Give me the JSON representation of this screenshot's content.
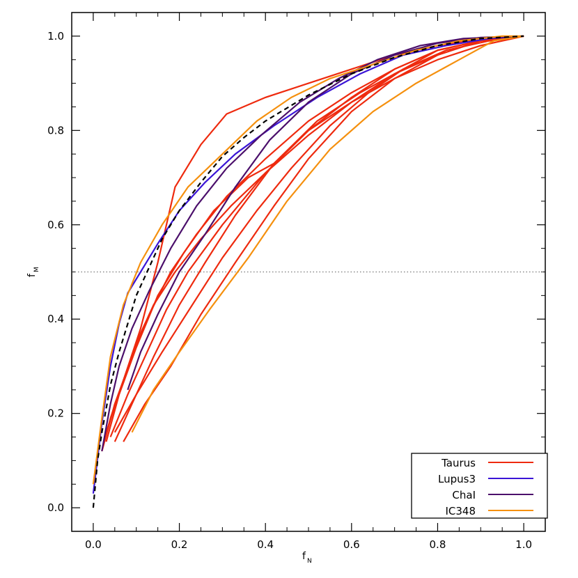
{
  "chart_data": {
    "type": "line",
    "title": "",
    "xlabel_main": "f",
    "xlabel_sub": "N",
    "ylabel_main": "f",
    "ylabel_sub": "M",
    "xlim": [
      -0.05,
      1.05
    ],
    "ylim": [
      -0.05,
      1.05
    ],
    "xticks": [
      "0.0",
      "0.2",
      "0.4",
      "0.6",
      "0.8",
      "1.0"
    ],
    "yticks": [
      "0.0",
      "0.2",
      "0.4",
      "0.6",
      "0.8",
      "1.0"
    ],
    "reference_line_y": 0.5,
    "grid": false,
    "legend_position": "bottom-right",
    "legend": [
      {
        "label": "Taurus",
        "color": "#ee2a0e"
      },
      {
        "label": "Lupus3",
        "color": "#3a14d6"
      },
      {
        "label": "ChaI",
        "color": "#4b0f6b"
      },
      {
        "label": "IC348",
        "color": "#f5900e"
      }
    ],
    "model_curve": {
      "style": "dashed",
      "color": "#000000",
      "x": [
        0.0,
        0.01,
        0.02,
        0.04,
        0.06,
        0.08,
        0.1,
        0.13,
        0.16,
        0.2,
        0.25,
        0.3,
        0.35,
        0.4,
        0.5,
        0.6,
        0.7,
        0.8,
        0.9,
        1.0
      ],
      "y": [
        0.0,
        0.1,
        0.16,
        0.26,
        0.33,
        0.39,
        0.45,
        0.51,
        0.57,
        0.63,
        0.69,
        0.745,
        0.785,
        0.82,
        0.875,
        0.92,
        0.955,
        0.98,
        0.995,
        1.0
      ]
    },
    "series": [
      {
        "group": "Taurus",
        "color": "#ee2a0e",
        "x": [
          0.03,
          0.07,
          0.11,
          0.15,
          0.19,
          0.25,
          0.31,
          0.4,
          0.5,
          0.6,
          0.7,
          0.8,
          0.9,
          1.0
        ],
        "y": [
          0.16,
          0.27,
          0.38,
          0.52,
          0.68,
          0.77,
          0.835,
          0.87,
          0.9,
          0.93,
          0.96,
          0.98,
          0.995,
          1.0
        ]
      },
      {
        "group": "Taurus",
        "color": "#ee2a0e",
        "x": [
          0.04,
          0.08,
          0.12,
          0.17,
          0.22,
          0.3,
          0.4,
          0.5,
          0.6,
          0.7,
          0.8,
          0.9,
          1.0
        ],
        "y": [
          0.15,
          0.24,
          0.32,
          0.42,
          0.5,
          0.6,
          0.71,
          0.8,
          0.86,
          0.91,
          0.95,
          0.98,
          1.0
        ]
      },
      {
        "group": "Taurus",
        "color": "#ee2a0e",
        "x": [
          0.05,
          0.09,
          0.14,
          0.2,
          0.26,
          0.33,
          0.42,
          0.52,
          0.62,
          0.72,
          0.82,
          0.92,
          1.0
        ],
        "y": [
          0.14,
          0.22,
          0.32,
          0.43,
          0.52,
          0.62,
          0.73,
          0.82,
          0.88,
          0.93,
          0.97,
          0.99,
          1.0
        ]
      },
      {
        "group": "Taurus",
        "color": "#ee2a0e",
        "x": [
          0.07,
          0.12,
          0.18,
          0.25,
          0.33,
          0.42,
          0.5,
          0.6,
          0.7,
          0.8,
          0.9,
          1.0
        ],
        "y": [
          0.14,
          0.22,
          0.3,
          0.41,
          0.52,
          0.64,
          0.74,
          0.84,
          0.91,
          0.96,
          0.99,
          1.0
        ]
      },
      {
        "group": "Taurus",
        "color": "#ee2a0e",
        "x": [
          0.02,
          0.05,
          0.09,
          0.13,
          0.18,
          0.24,
          0.31,
          0.4,
          0.5,
          0.6,
          0.7,
          0.8,
          0.9,
          1.0
        ],
        "y": [
          0.12,
          0.22,
          0.32,
          0.41,
          0.5,
          0.58,
          0.66,
          0.74,
          0.82,
          0.88,
          0.93,
          0.97,
          0.99,
          1.0
        ]
      },
      {
        "group": "Taurus",
        "color": "#ee2a0e",
        "x": [
          0.03,
          0.06,
          0.1,
          0.15,
          0.21,
          0.28,
          0.36,
          0.42,
          0.5,
          0.6,
          0.7,
          0.8,
          0.9,
          1.0
        ],
        "y": [
          0.14,
          0.24,
          0.34,
          0.45,
          0.54,
          0.63,
          0.7,
          0.73,
          0.8,
          0.87,
          0.93,
          0.97,
          0.99,
          1.0
        ]
      },
      {
        "group": "Taurus",
        "color": "#ee2a0e",
        "x": [
          0.02,
          0.04,
          0.07,
          0.1,
          0.14,
          0.19,
          0.25,
          0.32,
          0.4,
          0.5,
          0.6,
          0.7,
          0.8,
          0.9,
          1.0
        ],
        "y": [
          0.12,
          0.19,
          0.27,
          0.35,
          0.43,
          0.5,
          0.57,
          0.64,
          0.71,
          0.79,
          0.86,
          0.92,
          0.96,
          0.99,
          1.0
        ]
      },
      {
        "group": "Taurus",
        "color": "#ee2a0e",
        "x": [
          0.05,
          0.1,
          0.16,
          0.23,
          0.3,
          0.38,
          0.46,
          0.55,
          0.64,
          0.72,
          0.8,
          0.9,
          1.0
        ],
        "y": [
          0.16,
          0.24,
          0.33,
          0.43,
          0.53,
          0.63,
          0.72,
          0.81,
          0.88,
          0.93,
          0.97,
          0.99,
          1.0
        ]
      },
      {
        "group": "Lupus3",
        "color": "#3a14d6",
        "x": [
          0.0,
          0.02,
          0.04,
          0.06,
          0.08,
          0.11,
          0.15,
          0.2,
          0.26,
          0.33,
          0.42,
          0.52,
          0.62,
          0.72,
          0.82,
          0.92,
          1.0
        ],
        "y": [
          0.03,
          0.18,
          0.3,
          0.39,
          0.455,
          0.5,
          0.56,
          0.63,
          0.69,
          0.75,
          0.81,
          0.87,
          0.92,
          0.96,
          0.98,
          0.995,
          1.0
        ]
      },
      {
        "group": "ChaI",
        "color": "#4b0f6b",
        "x": [
          0.02,
          0.04,
          0.06,
          0.09,
          0.13,
          0.18,
          0.24,
          0.31,
          0.39,
          0.48,
          0.57,
          0.66,
          0.76,
          0.86,
          1.0
        ],
        "y": [
          0.12,
          0.22,
          0.3,
          0.38,
          0.46,
          0.55,
          0.64,
          0.72,
          0.79,
          0.86,
          0.91,
          0.95,
          0.98,
          0.995,
          1.0
        ]
      },
      {
        "group": "ChaI",
        "color": "#4b0f6b",
        "x": [
          0.08,
          0.11,
          0.15,
          0.2,
          0.26,
          0.33,
          0.41,
          0.5,
          0.6,
          0.7,
          0.8,
          0.9,
          1.0
        ],
        "y": [
          0.25,
          0.33,
          0.41,
          0.5,
          0.58,
          0.68,
          0.78,
          0.86,
          0.92,
          0.96,
          0.985,
          0.997,
          1.0
        ]
      },
      {
        "group": "IC348",
        "color": "#f5900e",
        "x": [
          0.0,
          0.02,
          0.04,
          0.07,
          0.11,
          0.16,
          0.22,
          0.3,
          0.38,
          0.46,
          0.55,
          0.65,
          0.75,
          0.85,
          0.95,
          1.0
        ],
        "y": [
          0.05,
          0.19,
          0.32,
          0.43,
          0.52,
          0.6,
          0.68,
          0.75,
          0.82,
          0.87,
          0.91,
          0.94,
          0.97,
          0.99,
          1.0,
          1.0
        ]
      },
      {
        "group": "IC348",
        "color": "#f5900e",
        "x": [
          0.09,
          0.14,
          0.2,
          0.27,
          0.36,
          0.45,
          0.55,
          0.65,
          0.75,
          0.85,
          0.93,
          1.0
        ],
        "y": [
          0.16,
          0.25,
          0.33,
          0.42,
          0.53,
          0.65,
          0.76,
          0.84,
          0.9,
          0.95,
          0.99,
          1.0
        ]
      }
    ]
  }
}
